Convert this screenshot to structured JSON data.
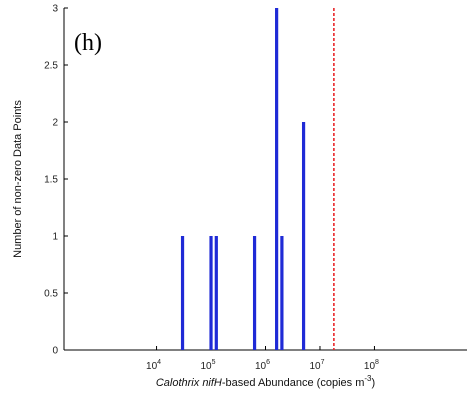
{
  "chart_data": {
    "type": "bar",
    "panel_label": "(h)",
    "ylabel": "Number of non-zero Data Points",
    "xlabel": {
      "parts": [
        {
          "text": "Calothrix",
          "italic": true
        },
        {
          "text": " ",
          "italic": false
        },
        {
          "text": "nifH",
          "italic": true
        },
        {
          "text": "-based Abundance (copies m",
          "italic": false
        },
        {
          "text": "-3",
          "superscript": true
        },
        {
          "text": ")",
          "italic": false
        }
      ]
    },
    "x_scale": "log",
    "xlim": [
      200,
      5000000000
    ],
    "ylim": [
      0,
      3
    ],
    "x_ticks": [
      {
        "value": 10000,
        "base": "10",
        "exp": "4"
      },
      {
        "value": 100000,
        "base": "10",
        "exp": "5"
      },
      {
        "value": 1000000,
        "base": "10",
        "exp": "6"
      },
      {
        "value": 10000000,
        "base": "10",
        "exp": "7"
      },
      {
        "value": 100000000,
        "base": "10",
        "exp": "8"
      }
    ],
    "y_ticks": [
      {
        "value": 0,
        "label": "0"
      },
      {
        "value": 0.5,
        "label": "0.5"
      },
      {
        "value": 1,
        "label": "1"
      },
      {
        "value": 1.5,
        "label": "1.5"
      },
      {
        "value": 2,
        "label": "2"
      },
      {
        "value": 2.5,
        "label": "2.5"
      },
      {
        "value": 3,
        "label": "3"
      }
    ],
    "bars": [
      {
        "x": 30000,
        "y": 1
      },
      {
        "x": 100000,
        "y": 1
      },
      {
        "x": 125000,
        "y": 1
      },
      {
        "x": 630000,
        "y": 1
      },
      {
        "x": 1600000,
        "y": 3
      },
      {
        "x": 2000000,
        "y": 1
      },
      {
        "x": 5000000,
        "y": 2
      }
    ],
    "bar_color": "#1f2ad6",
    "reference_line": {
      "x": 18000000,
      "color": "#e8262a",
      "style": "dashed"
    },
    "grid": false,
    "legend": "none"
  }
}
